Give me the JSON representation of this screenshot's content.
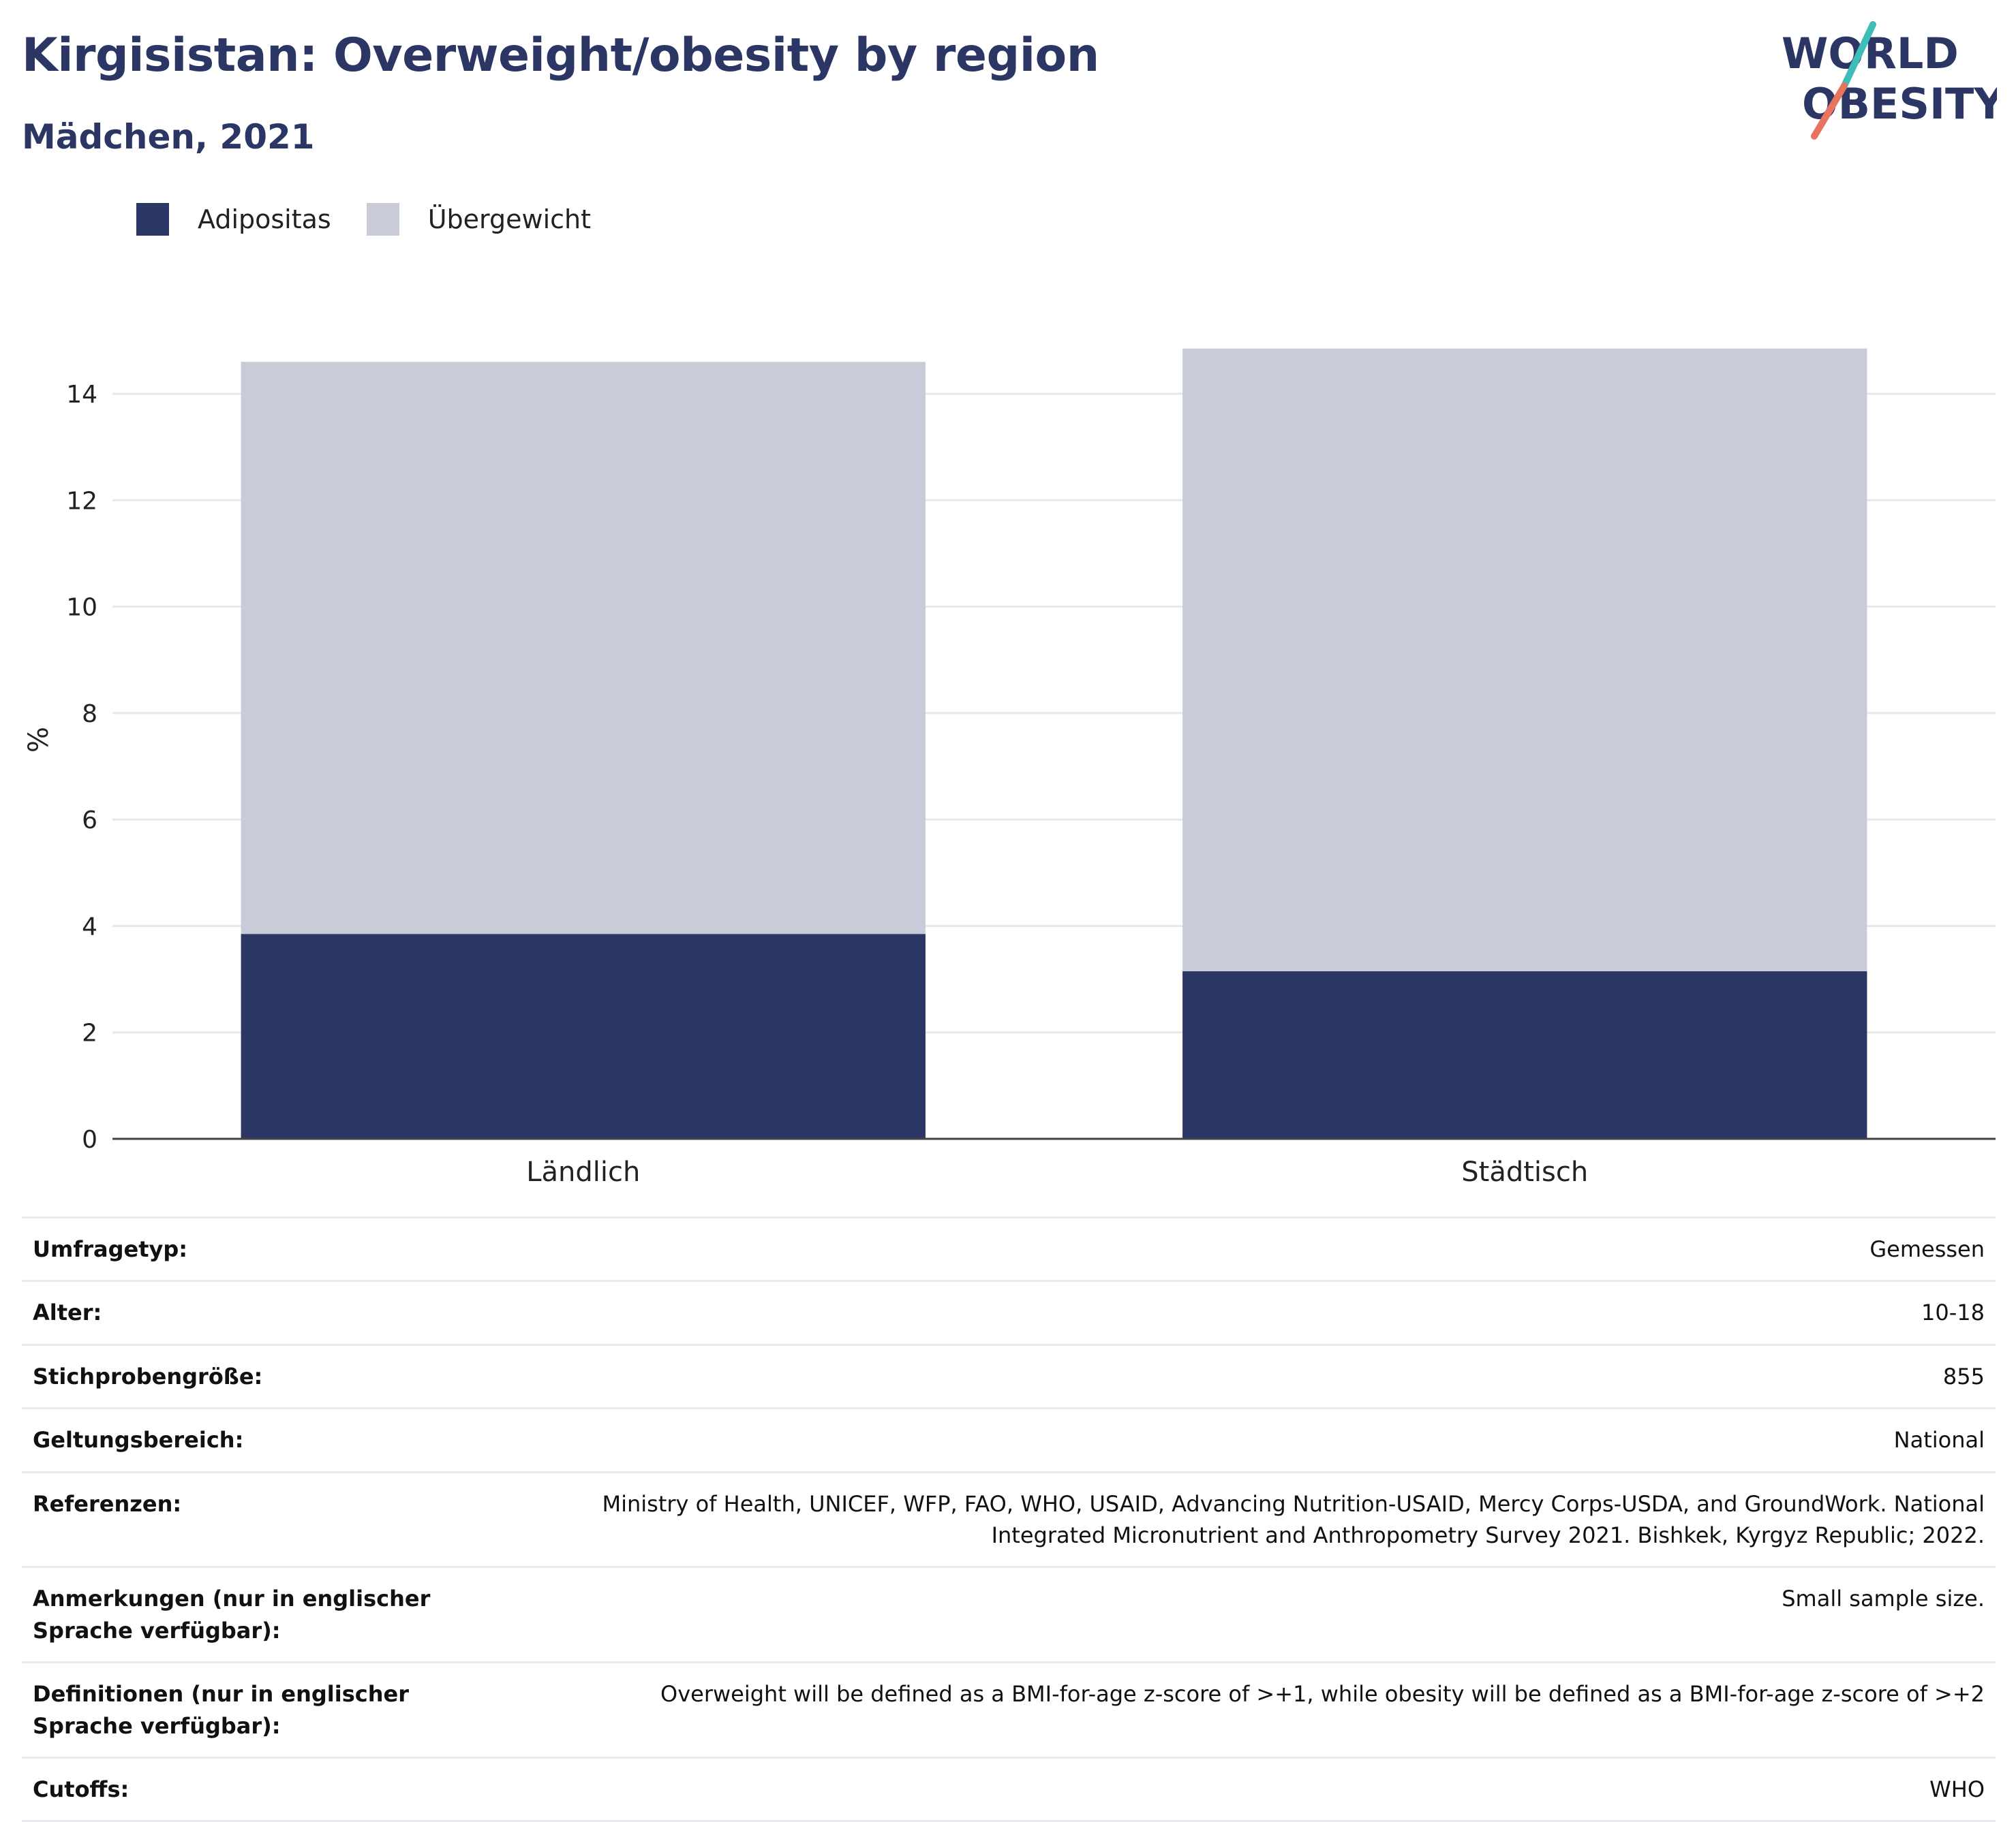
{
  "header": {
    "title": "Kirgisistan: Overweight/obesity by region",
    "subtitle": "Mädchen, 2021"
  },
  "logo": {
    "line1": "WORLD",
    "line2": "OBESITY"
  },
  "colors": {
    "adipositas": "#2b3664",
    "uebergewicht": "#c9ccd8",
    "title": "#2b3664",
    "logo_teal": "#3fbdb8",
    "logo_coral": "#e8735e"
  },
  "chart_data": {
    "type": "bar",
    "stacked": true,
    "categories": [
      "Ländlich",
      "Städtisch"
    ],
    "series": [
      {
        "name": "Adipositas",
        "values": [
          3.85,
          3.15
        ]
      },
      {
        "name": "Übergewicht",
        "values": [
          10.75,
          11.7
        ]
      }
    ],
    "ylabel": "%",
    "xlabel": "",
    "ylim": [
      0,
      15
    ],
    "yticks": [
      0,
      2,
      4,
      6,
      8,
      10,
      12,
      14
    ],
    "grid": true,
    "legend_position": "top-left"
  },
  "meta": [
    {
      "label": "Umfragetyp:",
      "value": "Gemessen"
    },
    {
      "label": "Alter:",
      "value": "10-18"
    },
    {
      "label": "Stichprobengröße:",
      "value": "855"
    },
    {
      "label": "Geltungsbereich:",
      "value": "National"
    },
    {
      "label": "Referenzen:",
      "value": "Ministry of Health, UNICEF, WFP, FAO, WHO, USAID, Advancing Nutrition-USAID, Mercy Corps-USDA, and GroundWork. National Integrated Micronutrient and Anthropometry Survey 2021. Bishkek, Kyrgyz Republic; 2022."
    },
    {
      "label": "Anmerkungen (nur in englischer Sprache verfügbar):",
      "value": "Small sample size."
    },
    {
      "label": "Definitionen (nur in englischer Sprache verfügbar):",
      "value": "Overweight will be defined as a BMI-for-age z-score of >+1, while obesity will be defined as a BMI-for-age z-score of >+2"
    },
    {
      "label": "Cutoffs:",
      "value": "WHO"
    }
  ]
}
